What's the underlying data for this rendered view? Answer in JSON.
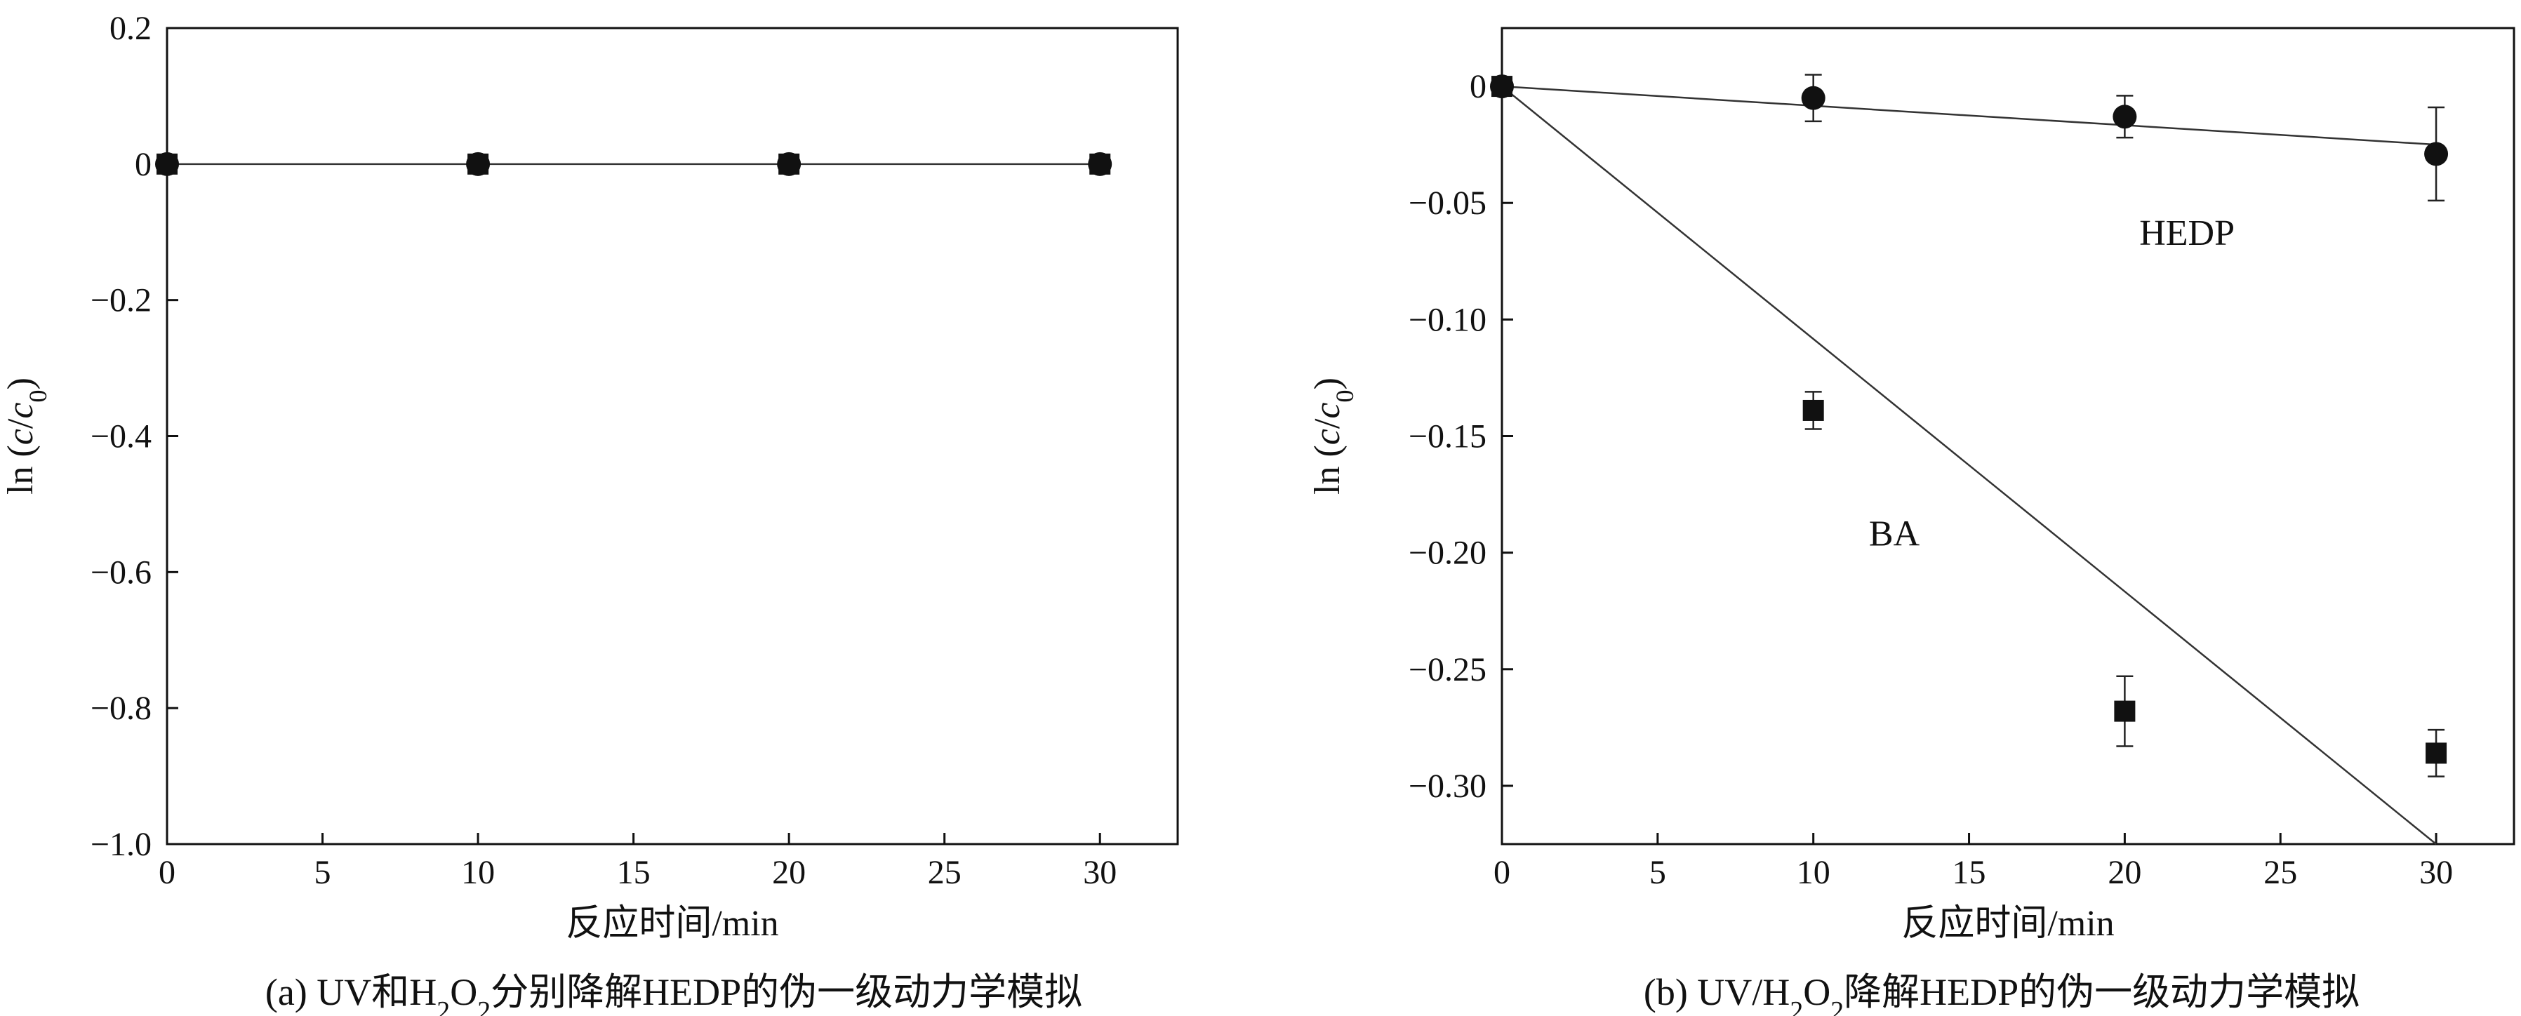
{
  "chart_data": [
    {
      "type": "scatter",
      "panel": "a",
      "caption": "(a) UV和H2O2分别降解HEDP的伪一级动力学模拟",
      "xlabel": "反应时间/min",
      "ylabel": "ln (c/c0)",
      "xlim": [
        0,
        32.5
      ],
      "ylim": [
        -1.0,
        0.2
      ],
      "xticks": [
        0,
        5,
        10,
        15,
        20,
        25,
        30
      ],
      "yticks": [
        0.2,
        0,
        -0.2,
        -0.4,
        -0.6,
        -0.8,
        -1.0
      ],
      "ytick_labels": [
        "0.2",
        "0",
        "−0.2",
        "−0.4",
        "−0.6",
        "−0.8",
        "−1.0"
      ],
      "series": [
        {
          "marker": "square",
          "x": [
            0,
            10,
            20,
            30
          ],
          "y": [
            0,
            0,
            0,
            0
          ],
          "fit": {
            "x": [
              0,
              30
            ],
            "y": [
              0,
              0
            ]
          }
        },
        {
          "marker": "circle",
          "x": [
            0,
            10,
            20,
            30
          ],
          "y": [
            0,
            0,
            0,
            0
          ]
        }
      ]
    },
    {
      "type": "scatter",
      "panel": "b",
      "caption": "(b) UV/H2O2降解HEDP的伪一级动力学模拟",
      "xlabel": "反应时间/min",
      "ylabel": "ln (c/c0)",
      "xlim": [
        0,
        32.5
      ],
      "ylim": [
        -0.325,
        0.025
      ],
      "xticks": [
        0,
        5,
        10,
        15,
        20,
        25,
        30
      ],
      "yticks": [
        0,
        -0.05,
        -0.1,
        -0.15,
        -0.2,
        -0.25,
        -0.3
      ],
      "ytick_labels": [
        "0",
        "−0.05",
        "−0.10",
        "−0.15",
        "−0.20",
        "−0.25",
        "−0.30"
      ],
      "annotations": [
        {
          "text": "HEDP",
          "x": 22,
          "y": -0.068
        },
        {
          "text": "BA",
          "x": 12.6,
          "y": -0.197
        }
      ],
      "series": [
        {
          "name": "HEDP",
          "marker": "circle",
          "x": [
            0,
            10,
            20,
            30
          ],
          "y": [
            0,
            -0.005,
            -0.013,
            -0.029
          ],
          "err": [
            0,
            0.01,
            0.009,
            0.02
          ],
          "fit": {
            "x": [
              0,
              30
            ],
            "y": [
              0,
              -0.025
            ]
          }
        },
        {
          "name": "BA",
          "marker": "square",
          "x": [
            0,
            10,
            20,
            30
          ],
          "y": [
            0,
            -0.139,
            -0.268,
            -0.286
          ],
          "err": [
            0,
            0.008,
            0.015,
            0.01
          ],
          "fit": {
            "x": [
              0,
              30
            ],
            "y": [
              0,
              -0.325
            ]
          }
        }
      ]
    }
  ]
}
